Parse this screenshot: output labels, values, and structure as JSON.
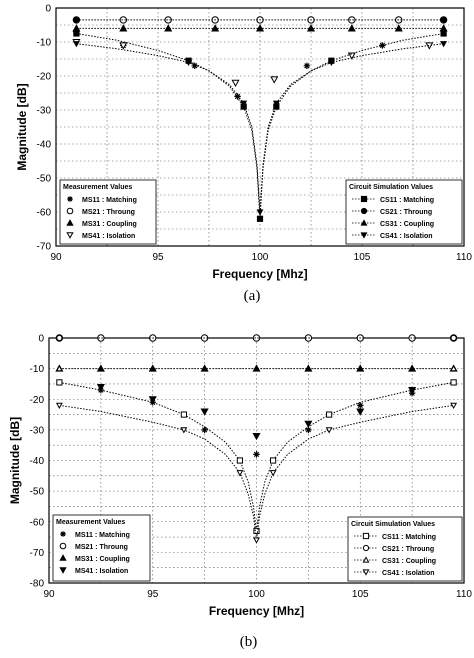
{
  "chart_data": [
    {
      "type": "scatter",
      "caption": "(a)",
      "xlabel": "Frequency [Mhz]",
      "ylabel": "Magnitude [dB]",
      "xlim": [
        90,
        110
      ],
      "ylim": [
        -70,
        0
      ],
      "xticks": [
        "90",
        "95",
        "100",
        "105",
        "110"
      ],
      "yticks": [
        "0",
        "-10",
        "-20",
        "-30",
        "-40",
        "-50",
        "-60",
        "-70"
      ],
      "grid": true,
      "measurement_legend_title": "Measurement Values",
      "simulation_legend_title": "Circuit Simulation Values",
      "series": [
        {
          "name": "MS11 : Matching",
          "marker": "star",
          "kind": "measurement",
          "x": [
            91,
            93.3,
            96.8,
            98.9,
            102.3,
            106
          ],
          "y": [
            -7,
            -11,
            -17,
            -26,
            -17,
            -11
          ]
        },
        {
          "name": "MS21 : Throung",
          "marker": "circle-open",
          "kind": "measurement",
          "x": [
            91,
            93.3,
            95.5,
            97.8,
            100,
            102.5,
            104.5,
            106.8,
            109
          ],
          "y": [
            -3.5,
            -3.5,
            -3.5,
            -3.5,
            -3.5,
            -3.5,
            -3.5,
            -3.5,
            -3.5
          ]
        },
        {
          "name": "MS31 : Coupling",
          "marker": "triangle-filled",
          "kind": "measurement",
          "x": [
            91,
            93.3,
            95.5,
            97.8,
            100,
            102.5,
            104.5,
            106.8,
            109
          ],
          "y": [
            -6,
            -6,
            -6,
            -6,
            -6,
            -6,
            -6,
            -6,
            -6
          ]
        },
        {
          "name": "MS41 : Isolation",
          "marker": "triangle-down-open",
          "kind": "measurement",
          "x": [
            91,
            93.3,
            98.8,
            100.7,
            104.5,
            108.3
          ],
          "y": [
            -10,
            -11,
            -22,
            -21,
            -14,
            -11
          ]
        },
        {
          "name": "CS11 : Matching",
          "marker": "square-filled",
          "kind": "simulation",
          "x": [
            91,
            93,
            95,
            96.5,
            97.5,
            98.5,
            99.2,
            99.6,
            99.85,
            100,
            100.15,
            100.4,
            100.8,
            101.5,
            102.5,
            103.5,
            105,
            107,
            109
          ],
          "y": [
            -7.5,
            -9.5,
            -12.5,
            -15.5,
            -18.5,
            -23,
            -29,
            -36,
            -47,
            -62,
            -47,
            -36,
            -29,
            -23,
            -18.5,
            -15.5,
            -12.5,
            -9.5,
            -7.5
          ]
        },
        {
          "name": "CS21 : Throung",
          "marker": "circle-filled",
          "kind": "simulation",
          "x": [
            91,
            109
          ],
          "y": [
            -3.5,
            -3.5
          ]
        },
        {
          "name": "CS31 : Coupling",
          "marker": "triangle-filled",
          "kind": "simulation",
          "x": [
            91,
            109
          ],
          "y": [
            -6,
            -6
          ]
        },
        {
          "name": "CS41 : Isolation",
          "marker": "triangle-down-filled",
          "kind": "simulation",
          "x": [
            91,
            93,
            95,
            96.5,
            97.5,
            98.5,
            99.2,
            99.6,
            99.85,
            100,
            100.15,
            100.4,
            100.8,
            101.5,
            102.5,
            103.5,
            105,
            107,
            109
          ],
          "y": [
            -10.5,
            -12,
            -14,
            -16,
            -18.5,
            -22.5,
            -28,
            -35,
            -46,
            -60,
            -46,
            -35,
            -28,
            -22.5,
            -18.5,
            -16,
            -14,
            -12,
            -10.5
          ]
        }
      ]
    },
    {
      "type": "scatter",
      "caption": "(b)",
      "xlabel": "Frequency [Mhz]",
      "ylabel": "Magnitude [dB]",
      "xlim": [
        90,
        110
      ],
      "ylim": [
        -80,
        0
      ],
      "xticks": [
        "90",
        "95",
        "100",
        "105",
        "110"
      ],
      "yticks": [
        "0",
        "-10",
        "-20",
        "-30",
        "-40",
        "-50",
        "-60",
        "-70",
        "-80"
      ],
      "grid": true,
      "measurement_legend_title": "Measurement Values",
      "simulation_legend_title": "Circuit Simulation Values",
      "series": [
        {
          "name": "MS11 : Matching",
          "marker": "star",
          "kind": "measurement",
          "x": [
            92.5,
            95,
            97.5,
            100,
            102.5,
            105,
            107.5
          ],
          "y": [
            -17,
            -21,
            -30,
            -38,
            -30,
            -22,
            -18
          ]
        },
        {
          "name": "MS21 : Throung",
          "marker": "circle-open",
          "kind": "measurement",
          "x": [
            90.5,
            92.5,
            95,
            97.5,
            100,
            102.5,
            105,
            107.5,
            109.5
          ],
          "y": [
            0,
            0,
            0,
            0,
            0,
            0,
            0,
            0,
            0
          ]
        },
        {
          "name": "MS31 : Coupling",
          "marker": "triangle-filled",
          "kind": "measurement",
          "x": [
            90.5,
            92.5,
            95,
            97.5,
            100,
            102.5,
            105,
            107.5,
            109.5
          ],
          "y": [
            -10,
            -10,
            -10,
            -10,
            -10,
            -10,
            -10,
            -10,
            -10
          ]
        },
        {
          "name": "MS41 : Isolation",
          "marker": "triangle-down-filled",
          "kind": "measurement",
          "x": [
            92.5,
            95,
            97.5,
            100,
            102.5,
            105,
            107.5
          ],
          "y": [
            -16,
            -20,
            -24,
            -32,
            -28,
            -24,
            -17
          ]
        },
        {
          "name": "CS11 : Matching",
          "marker": "square-open",
          "kind": "simulation",
          "x": [
            90.5,
            92.5,
            95,
            96.5,
            97.5,
            98.5,
            99.2,
            99.6,
            99.85,
            100,
            100.15,
            100.4,
            100.8,
            101.5,
            102.5,
            103.5,
            105,
            107.5,
            109.5
          ],
          "y": [
            -14.5,
            -17,
            -21,
            -25,
            -29,
            -34,
            -40,
            -47,
            -55,
            -63,
            -55,
            -47,
            -40,
            -34,
            -29,
            -25,
            -21,
            -17,
            -14.5
          ]
        },
        {
          "name": "CS21 : Throung",
          "marker": "circle-open",
          "kind": "simulation",
          "x": [
            90.5,
            109.5
          ],
          "y": [
            0,
            0
          ]
        },
        {
          "name": "CS31 : Coupling",
          "marker": "triangle-open",
          "kind": "simulation",
          "x": [
            90.5,
            109.5
          ],
          "y": [
            -10,
            -10
          ]
        },
        {
          "name": "CS41 : Isolation",
          "marker": "triangle-down-open",
          "kind": "simulation",
          "x": [
            90.5,
            92.5,
            95,
            96.5,
            97.5,
            98.5,
            99.2,
            99.6,
            99.85,
            100,
            100.15,
            100.4,
            100.8,
            101.5,
            102.5,
            103.5,
            105,
            107.5,
            109.5
          ],
          "y": [
            -22,
            -24,
            -27.5,
            -30,
            -33,
            -38,
            -44,
            -51,
            -58,
            -66,
            -58,
            -51,
            -44,
            -38,
            -33,
            -30,
            -27.5,
            -24,
            -22
          ]
        }
      ]
    }
  ]
}
